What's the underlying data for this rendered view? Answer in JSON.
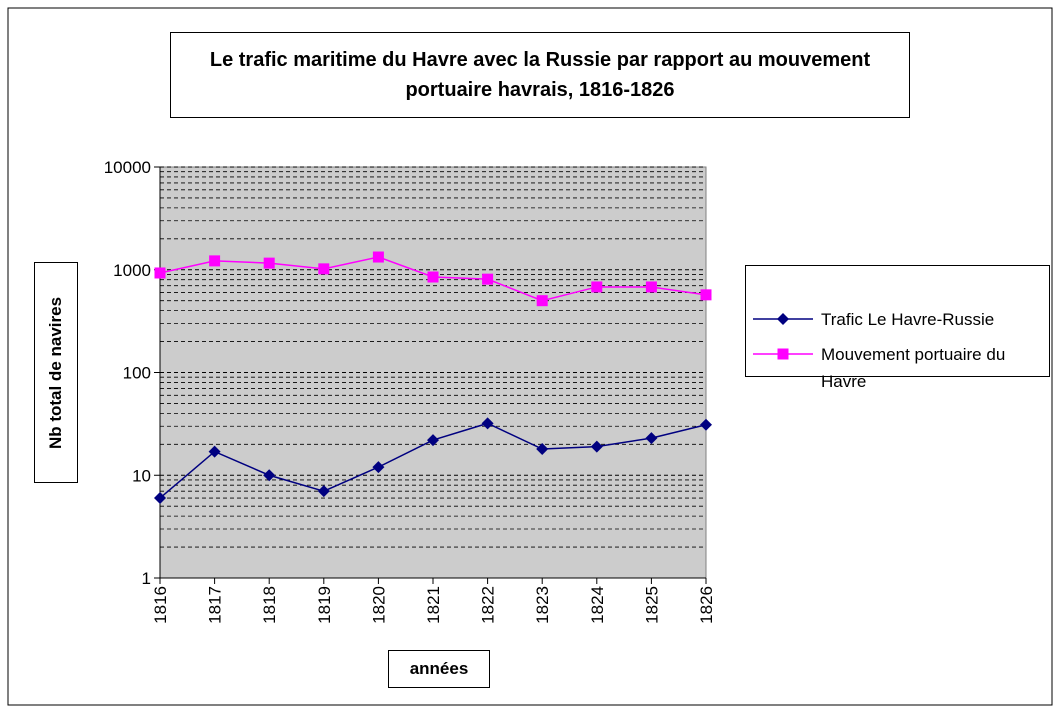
{
  "chart_data": {
    "type": "line",
    "title": "Le trafic maritime du Havre avec la Russie par rapport au mouvement portuaire havrais, 1816-1826",
    "x_label": "années",
    "y_label": "Nb total de navires",
    "categories": [
      "1816",
      "1817",
      "1818",
      "1819",
      "1820",
      "1821",
      "1822",
      "1823",
      "1824",
      "1825",
      "1826"
    ],
    "series": [
      {
        "name": "Trafic Le Havre-Russie",
        "color": "#000080",
        "marker": "diamond",
        "values": [
          6,
          17,
          10,
          7,
          12,
          22,
          32,
          18,
          19,
          23,
          31
        ]
      },
      {
        "name": "Mouvement portuaire du Havre",
        "color": "#ff00ff",
        "marker": "square",
        "values": [
          930,
          1220,
          1160,
          1020,
          1330,
          850,
          810,
          500,
          680,
          680,
          570
        ]
      }
    ],
    "ylim": [
      1,
      10000
    ],
    "yticks": [
      1,
      10,
      100,
      1000,
      10000
    ],
    "log_scale": true,
    "grid": true,
    "minor_grid": true,
    "legend": "right"
  }
}
